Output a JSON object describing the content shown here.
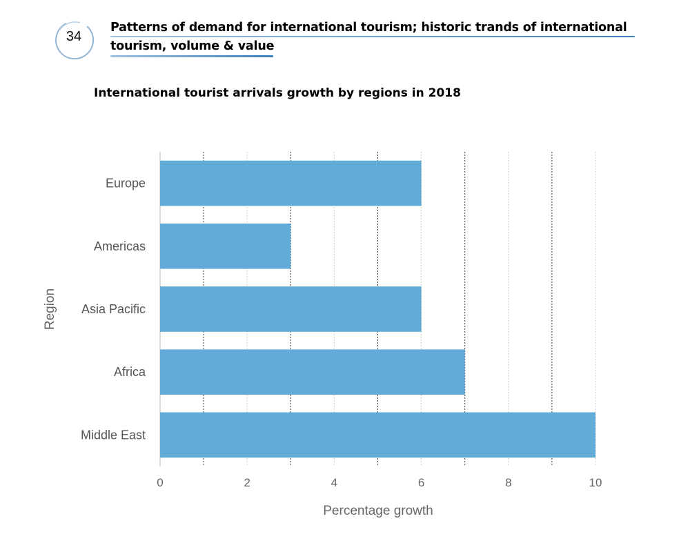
{
  "header": {
    "number": "34",
    "title_line1": "Patterns of demand for international tourism; historic trands of international",
    "title_line2": "tourism, volume & value"
  },
  "chart_data": {
    "type": "bar",
    "orientation": "horizontal",
    "title": "International tourist arrivals growth by regions in 2018",
    "xlabel": "Percentage growth",
    "ylabel": "Region",
    "categories": [
      "Europe",
      "Americas",
      "Asia Pacific",
      "Africa",
      "Middle East"
    ],
    "values": [
      6,
      3,
      6,
      7,
      10
    ],
    "xlim": [
      0,
      10
    ],
    "xticks": [
      0,
      2,
      4,
      6,
      8,
      10
    ],
    "grid": true,
    "bar_color": "#62abd7"
  }
}
